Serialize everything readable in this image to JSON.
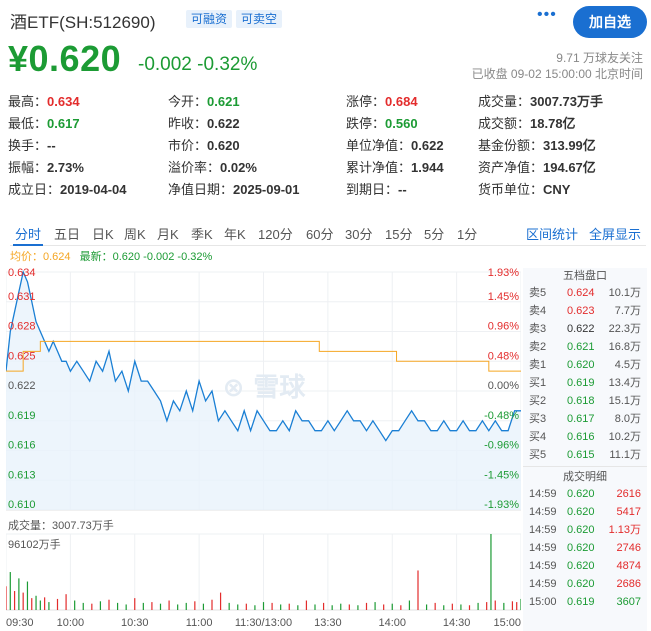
{
  "header": {
    "title": "酒ETF(SH:512690)",
    "tag_margin": "可融资",
    "tag_short": "可卖空",
    "more": "•••",
    "follow_button": "加自选"
  },
  "quote": {
    "price": "¥0.620",
    "change": "-0.002",
    "change_pct": "-0.32%",
    "followers": "9.71 万球友关注",
    "status_time": "已收盘 09-02 15:00:00 北京时间"
  },
  "stats": [
    [
      {
        "label": "最高：",
        "value": "0.634",
        "color": "up"
      },
      {
        "label": "今开：",
        "value": "0.621",
        "color": "down"
      },
      {
        "label": "涨停：",
        "value": "0.684",
        "color": "up"
      },
      {
        "label": "成交量：",
        "value": "3007.73万手",
        "color": "plain"
      }
    ],
    [
      {
        "label": "最低：",
        "value": "0.617",
        "color": "down"
      },
      {
        "label": "昨收：",
        "value": "0.622",
        "color": "plain"
      },
      {
        "label": "跌停：",
        "value": "0.560",
        "color": "down"
      },
      {
        "label": "成交额：",
        "value": "18.78亿",
        "color": "plain"
      }
    ],
    [
      {
        "label": "换手：",
        "value": "--",
        "color": "plain"
      },
      {
        "label": "市价：",
        "value": "0.620",
        "color": "plain"
      },
      {
        "label": "单位净值：",
        "value": "0.622",
        "color": "plain"
      },
      {
        "label": "基金份额：",
        "value": "313.99亿",
        "color": "plain"
      }
    ],
    [
      {
        "label": "振幅：",
        "value": "2.73%",
        "color": "plain"
      },
      {
        "label": "溢价率：",
        "value": "0.02%",
        "color": "plain"
      },
      {
        "label": "累计净值：",
        "value": "1.944",
        "color": "plain"
      },
      {
        "label": "资产净值：",
        "value": "194.67亿",
        "color": "plain"
      }
    ],
    [
      {
        "label": "成立日：",
        "value": "2019-04-04",
        "color": "plain"
      },
      {
        "label": "净值日期：",
        "value": "2025-09-01",
        "color": "plain"
      },
      {
        "label": "到期日：",
        "value": "--",
        "color": "plain"
      },
      {
        "label": "货币单位：",
        "value": "CNY",
        "color": "plain"
      }
    ]
  ],
  "tabs": [
    "分时",
    "五日",
    "日K",
    "周K",
    "月K",
    "季K",
    "年K",
    "120分",
    "60分",
    "30分",
    "15分",
    "5分",
    "1分"
  ],
  "tab_active": "分时",
  "tab_links": [
    "区间统计",
    "全屏显示"
  ],
  "legend": {
    "avg_label": "均价：",
    "avg_value": "0.624",
    "latest_label": "最新：",
    "latest_value": "0.620 -0.002 -0.32%"
  },
  "watermark": "雪球",
  "volume": {
    "label": "成交量：3007.73万手",
    "max_label": "96102万手"
  },
  "order_book": {
    "title": "五档盘口",
    "asks": [
      {
        "name": "卖5",
        "price": "0.624",
        "vol": "10.1万"
      },
      {
        "name": "卖4",
        "price": "0.623",
        "vol": "7.7万"
      },
      {
        "name": "卖3",
        "price": "0.622",
        "vol": "22.3万"
      },
      {
        "name": "卖2",
        "price": "0.621",
        "vol": "16.8万"
      },
      {
        "name": "卖1",
        "price": "0.620",
        "vol": "4.5万"
      }
    ],
    "bids": [
      {
        "name": "买1",
        "price": "0.619",
        "vol": "13.4万"
      },
      {
        "name": "买2",
        "price": "0.618",
        "vol": "15.1万"
      },
      {
        "name": "买3",
        "price": "0.617",
        "vol": "8.0万"
      },
      {
        "name": "买4",
        "price": "0.616",
        "vol": "10.2万"
      },
      {
        "name": "买5",
        "price": "0.615",
        "vol": "11.1万"
      }
    ]
  },
  "trades": {
    "title": "成交明细",
    "rows": [
      {
        "time": "14:59",
        "price": "0.620",
        "vol": "2616",
        "dir": "up"
      },
      {
        "time": "14:59",
        "price": "0.620",
        "vol": "5417",
        "dir": "up"
      },
      {
        "time": "14:59",
        "price": "0.620",
        "vol": "1.13万",
        "dir": "up"
      },
      {
        "time": "14:59",
        "price": "0.620",
        "vol": "2746",
        "dir": "up"
      },
      {
        "time": "14:59",
        "price": "0.620",
        "vol": "4874",
        "dir": "up"
      },
      {
        "time": "14:59",
        "price": "0.620",
        "vol": "2686",
        "dir": "up"
      },
      {
        "time": "15:00",
        "price": "0.619",
        "vol": "3607",
        "dir": "down"
      }
    ]
  },
  "chart_data": {
    "type": "line",
    "title": "",
    "prev_close": 0.622,
    "ylim": [
      0.61,
      0.634
    ],
    "y_ticks_left": [
      "0.634",
      "0.631",
      "0.628",
      "0.625",
      "0.622",
      "0.619",
      "0.616",
      "0.613",
      "0.610"
    ],
    "y_ticks_right": [
      "1.93%",
      "1.45%",
      "0.96%",
      "0.48%",
      "0.00%",
      "-0.48%",
      "-0.96%",
      "-1.45%",
      "-1.93%"
    ],
    "x_ticks": [
      "09:30",
      "10:00",
      "10:30",
      "11:00",
      "11:30/13:00",
      "13:30",
      "14:00",
      "14:30",
      "15:00"
    ],
    "x_range_minutes": [
      0,
      240
    ],
    "series": [
      {
        "name": "最新",
        "color": "#1a7fd4",
        "x": [
          0,
          2,
          4,
          6,
          8,
          10,
          12,
          14,
          16,
          18,
          20,
          22,
          24,
          26,
          28,
          30,
          33,
          36,
          39,
          42,
          45,
          48,
          51,
          54,
          57,
          60,
          63,
          66,
          69,
          72,
          75,
          78,
          81,
          84,
          87,
          90,
          93,
          96,
          99,
          102,
          105,
          108,
          111,
          114,
          117,
          120,
          123,
          126,
          129,
          132,
          135,
          138,
          141,
          144,
          147,
          150,
          153,
          156,
          159,
          162,
          165,
          168,
          171,
          174,
          177,
          180,
          183,
          186,
          189,
          192,
          195,
          198,
          201,
          204,
          207,
          210,
          213,
          216,
          219,
          222,
          225,
          228,
          231,
          234,
          237,
          240
        ],
        "values": [
          0.624,
          0.628,
          0.63,
          0.632,
          0.634,
          0.633,
          0.631,
          0.629,
          0.628,
          0.627,
          0.626,
          0.627,
          0.626,
          0.625,
          0.625,
          0.624,
          0.625,
          0.624,
          0.623,
          0.625,
          0.624,
          0.626,
          0.623,
          0.624,
          0.622,
          0.625,
          0.623,
          0.623,
          0.622,
          0.621,
          0.619,
          0.621,
          0.62,
          0.622,
          0.62,
          0.623,
          0.621,
          0.622,
          0.619,
          0.62,
          0.619,
          0.618,
          0.62,
          0.618,
          0.62,
          0.619,
          0.618,
          0.618,
          0.619,
          0.618,
          0.62,
          0.619,
          0.619,
          0.618,
          0.618,
          0.619,
          0.618,
          0.619,
          0.62,
          0.619,
          0.619,
          0.618,
          0.619,
          0.618,
          0.617,
          0.618,
          0.618,
          0.619,
          0.62,
          0.619,
          0.619,
          0.618,
          0.618,
          0.619,
          0.618,
          0.618,
          0.619,
          0.618,
          0.618,
          0.619,
          0.618,
          0.619,
          0.618,
          0.618,
          0.62,
          0.62
        ]
      },
      {
        "name": "均价",
        "color": "#f5a623",
        "x": [
          0,
          8,
          16,
          24,
          30,
          60,
          100,
          138,
          146,
          150,
          178,
          182,
          220,
          225,
          240
        ],
        "values": [
          0.624,
          0.626,
          0.627,
          0.627,
          0.627,
          0.627,
          0.627,
          0.627,
          0.626,
          0.626,
          0.626,
          0.625,
          0.625,
          0.624,
          0.624
        ]
      }
    ],
    "volume_series": {
      "name": "成交量",
      "unit": "万手",
      "max": 96102,
      "x": [
        0,
        2,
        4,
        6,
        8,
        10,
        12,
        14,
        16,
        18,
        20,
        24,
        28,
        32,
        36,
        40,
        44,
        48,
        52,
        56,
        60,
        64,
        68,
        72,
        76,
        80,
        84,
        88,
        92,
        96,
        100,
        104,
        108,
        112,
        116,
        120,
        124,
        128,
        132,
        136,
        140,
        144,
        148,
        152,
        156,
        160,
        164,
        168,
        172,
        176,
        180,
        184,
        188,
        192,
        196,
        200,
        204,
        208,
        212,
        216,
        220,
        224,
        226,
        228,
        232,
        236,
        238,
        240
      ],
      "values": [
        30000,
        48000,
        24000,
        40000,
        22000,
        36000,
        15000,
        18000,
        12000,
        16000,
        10000,
        14000,
        20000,
        12000,
        9000,
        8000,
        11000,
        13000,
        9000,
        7000,
        15000,
        9000,
        10000,
        8000,
        12000,
        7000,
        9000,
        11000,
        8000,
        13000,
        22000,
        9000,
        7000,
        8000,
        6000,
        10000,
        9000,
        7000,
        8000,
        6000,
        12000,
        7000,
        9000,
        6000,
        8000,
        7000,
        6000,
        9000,
        10000,
        7000,
        8000,
        6000,
        12000,
        50000,
        7000,
        9000,
        6000,
        8000,
        7000,
        6000,
        9000,
        10000,
        96102,
        12000,
        9000,
        11000,
        10000,
        14000
      ],
      "directions": [
        "up",
        "down",
        "up",
        "down",
        "up",
        "down",
        "up",
        "down",
        "down",
        "up",
        "down",
        "up",
        "up",
        "down",
        "down",
        "up",
        "down",
        "up",
        "down",
        "down",
        "up",
        "down",
        "up",
        "down",
        "up",
        "down",
        "down",
        "up",
        "down",
        "up",
        "up",
        "down",
        "down",
        "up",
        "down",
        "down",
        "up",
        "down",
        "up",
        "down",
        "up",
        "down",
        "up",
        "down",
        "down",
        "up",
        "down",
        "up",
        "down",
        "up",
        "down",
        "up",
        "down",
        "up",
        "down",
        "up",
        "down",
        "up",
        "down",
        "up",
        "down",
        "up",
        "down",
        "up",
        "down",
        "up",
        "up",
        "down"
      ]
    }
  },
  "colors": {
    "up": "#e32c2c",
    "down": "#1c9b34",
    "accent": "#1a6fd1",
    "price_line": "#1a7fd4",
    "avg_line": "#f5a623"
  }
}
